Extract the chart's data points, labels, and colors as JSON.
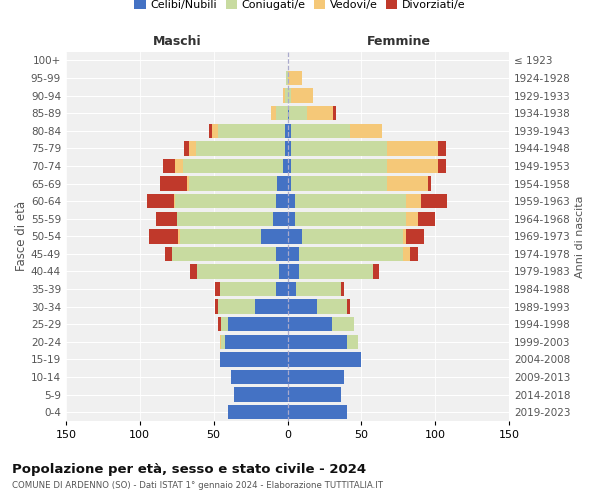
{
  "age_groups": [
    "0-4",
    "5-9",
    "10-14",
    "15-19",
    "20-24",
    "25-29",
    "30-34",
    "35-39",
    "40-44",
    "45-49",
    "50-54",
    "55-59",
    "60-64",
    "65-69",
    "70-74",
    "75-79",
    "80-84",
    "85-89",
    "90-94",
    "95-99",
    "100+"
  ],
  "birth_years": [
    "2019-2023",
    "2014-2018",
    "2009-2013",
    "2004-2008",
    "1999-2003",
    "1994-1998",
    "1989-1993",
    "1984-1988",
    "1979-1983",
    "1974-1978",
    "1969-1973",
    "1964-1968",
    "1959-1963",
    "1954-1958",
    "1949-1953",
    "1944-1948",
    "1939-1943",
    "1934-1938",
    "1929-1933",
    "1924-1928",
    "≤ 1923"
  ],
  "male_celibe": [
    40,
    36,
    38,
    46,
    42,
    40,
    22,
    8,
    6,
    8,
    18,
    10,
    8,
    7,
    3,
    2,
    2,
    0,
    0,
    0,
    0
  ],
  "male_coniugato": [
    0,
    0,
    0,
    0,
    3,
    5,
    25,
    38,
    55,
    70,
    55,
    65,
    68,
    60,
    68,
    60,
    45,
    8,
    2,
    1,
    0
  ],
  "male_vedovo": [
    0,
    0,
    0,
    0,
    1,
    0,
    0,
    0,
    0,
    0,
    1,
    0,
    1,
    1,
    5,
    5,
    4,
    3,
    1,
    0,
    0
  ],
  "male_divorziato": [
    0,
    0,
    0,
    0,
    0,
    2,
    2,
    3,
    5,
    5,
    20,
    14,
    18,
    18,
    8,
    3,
    2,
    0,
    0,
    0,
    0
  ],
  "female_nubile": [
    40,
    36,
    38,
    50,
    40,
    30,
    20,
    6,
    8,
    8,
    10,
    5,
    5,
    2,
    2,
    2,
    2,
    1,
    0,
    0,
    0
  ],
  "female_coniugata": [
    0,
    0,
    0,
    0,
    8,
    15,
    20,
    30,
    50,
    70,
    68,
    75,
    75,
    65,
    65,
    65,
    40,
    12,
    2,
    0,
    0
  ],
  "female_vedova": [
    0,
    0,
    0,
    0,
    0,
    0,
    0,
    0,
    0,
    5,
    2,
    8,
    10,
    28,
    35,
    35,
    22,
    18,
    15,
    10,
    0
  ],
  "female_divorziata": [
    0,
    0,
    0,
    0,
    0,
    0,
    2,
    2,
    4,
    5,
    12,
    12,
    18,
    2,
    5,
    5,
    0,
    2,
    0,
    0,
    0
  ],
  "color_celibe": "#4472C4",
  "color_coniugato": "#c8dba0",
  "color_vedovo": "#f5c878",
  "color_divorziato": "#c0392b",
  "xlim": 150,
  "title": "Popolazione per età, sesso e stato civile - 2024",
  "subtitle": "COMUNE DI ARDENNO (SO) - Dati ISTAT 1° gennaio 2024 - Elaborazione TUTTITALIA.IT",
  "ylabel_left": "Fasce di età",
  "ylabel_right": "Anni di nascita",
  "label_maschi": "Maschi",
  "label_femmine": "Femmine",
  "legend_labels": [
    "Celibi/Nubili",
    "Coniugati/e",
    "Vedovi/e",
    "Divorziati/e"
  ],
  "bg_color": "#ffffff",
  "plot_bg_color": "#f0f0f0",
  "grid_color": "#ffffff"
}
